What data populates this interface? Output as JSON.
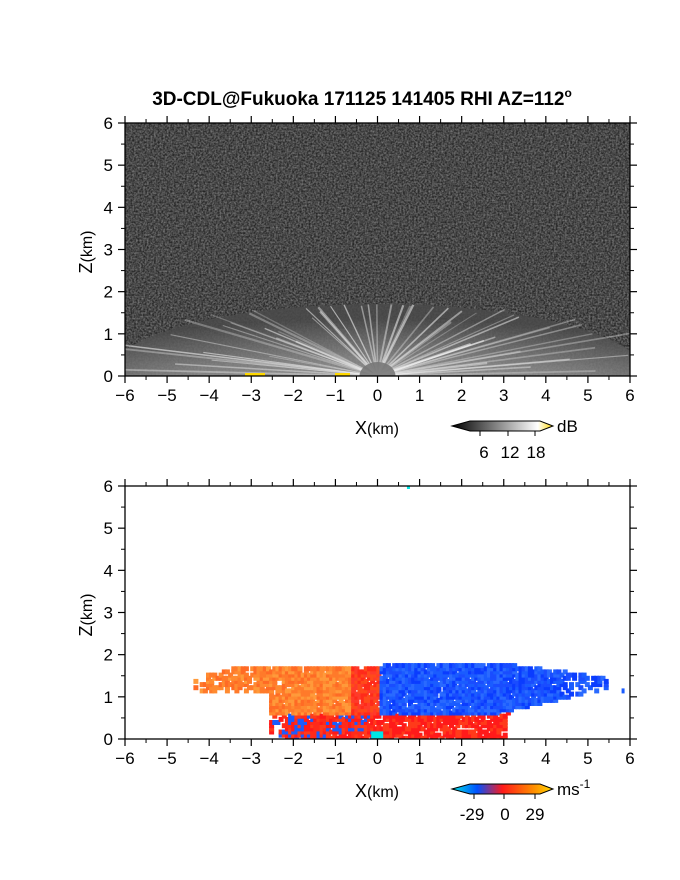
{
  "title": "3D-CDL@Fukuoka 171125 141405 RHI AZ=112",
  "title_superscript": "o",
  "chart_data": [
    {
      "type": "heatmap",
      "quantity": "reflectivity",
      "xlabel_main": "X",
      "xlabel_unit": "(km)",
      "ylabel_main": "Z",
      "ylabel_unit": "(km)",
      "xlim": [
        -6,
        6
      ],
      "ylim": [
        0,
        6
      ],
      "xticks": [
        "-6",
        "-5",
        "-4",
        "-3",
        "-2",
        "-1",
        "0",
        "1",
        "2",
        "3",
        "4",
        "5",
        "6"
      ],
      "yticks": [
        "0",
        "1",
        "2",
        "3",
        "4",
        "5",
        "6"
      ],
      "colorbar": {
        "unit": "dB",
        "tick_labels": [
          "6",
          "12",
          "18"
        ],
        "colors": [
          "#000000",
          "#ffffff",
          "#ffd800"
        ]
      },
      "feature": {
        "description_values": {
          "x_extent_km": [
            -6,
            6
          ],
          "top_km": 1.7,
          "center_x_km": 0
        }
      },
      "background_color": "#222222"
    },
    {
      "type": "heatmap",
      "quantity": "doppler_velocity",
      "xlabel_main": "X",
      "xlabel_unit": "(km)",
      "ylabel_main": "Z",
      "ylabel_unit": "(km)",
      "xlim": [
        -6,
        6
      ],
      "ylim": [
        0,
        6
      ],
      "xticks": [
        "-6",
        "-5",
        "-4",
        "-3",
        "-2",
        "-1",
        "0",
        "1",
        "2",
        "3",
        "4",
        "5",
        "6"
      ],
      "yticks": [
        "0",
        "1",
        "2",
        "3",
        "4",
        "5",
        "6"
      ],
      "colorbar": {
        "unit_main": "ms",
        "unit_exp": "-1",
        "tick_labels": [
          "-29",
          "0",
          "29"
        ],
        "colors": [
          "#00e5e5",
          "#0050ff",
          "#ff1a1a",
          "#ffd800"
        ]
      },
      "regions": [
        {
          "name": "approaching",
          "x_range_km": [
            -4.4,
            0
          ],
          "z_range_km": [
            0,
            1.75
          ],
          "color": "#ff7a2a"
        },
        {
          "name": "receding",
          "x_range_km": [
            0,
            5.4
          ],
          "z_range_km": [
            0.5,
            1.75
          ],
          "color": "#1a5cff"
        }
      ],
      "background_color": "#ffffff"
    }
  ]
}
